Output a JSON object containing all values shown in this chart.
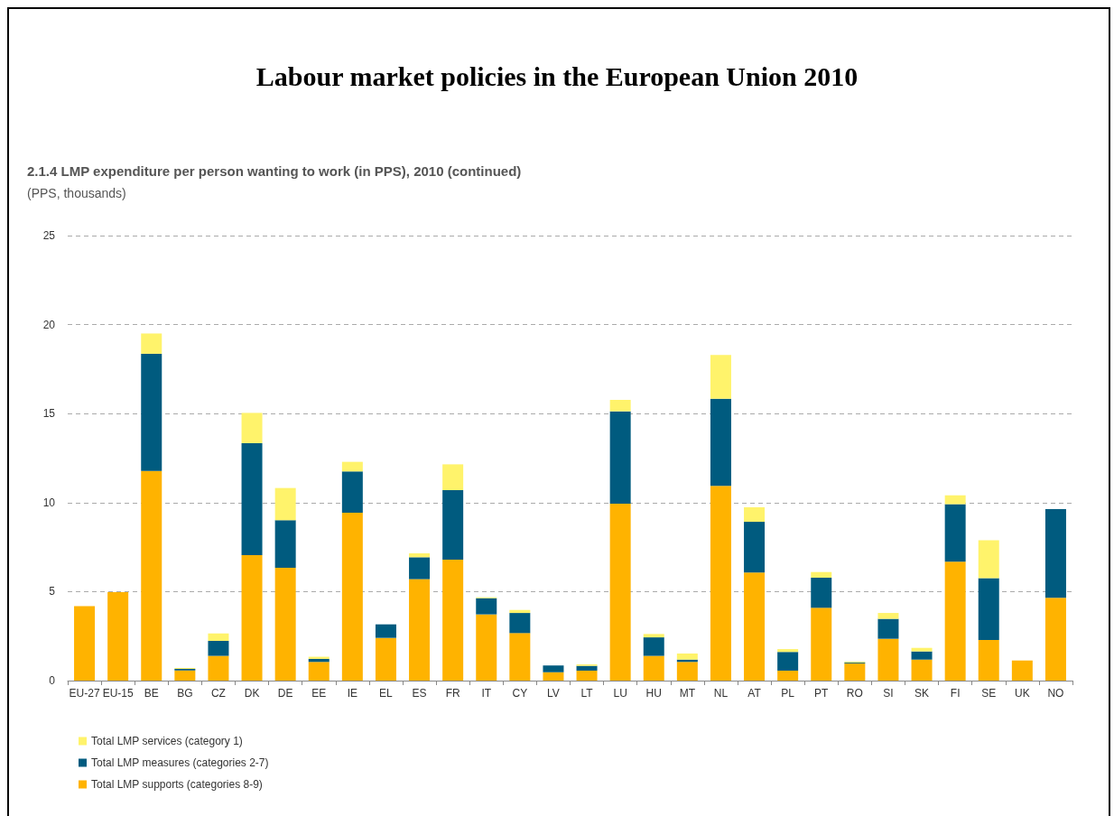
{
  "chart_data": {
    "type": "bar",
    "title": "Labour market policies in the European Union 2010",
    "subtitle": "2.1.4 LMP expenditure per person wanting to work (in PPS), 2010 (continued)",
    "ylabel": "(PPS, thousands)",
    "categories": [
      "EU-27",
      "EU-15",
      "BE",
      "BG",
      "CZ",
      "DK",
      "DE",
      "EE",
      "IE",
      "EL",
      "ES",
      "FR",
      "IT",
      "CY",
      "LV",
      "LT",
      "LU",
      "HU",
      "MT",
      "NL",
      "AT",
      "PL",
      "PT",
      "RO",
      "SI",
      "SK",
      "FI",
      "SE",
      "UK",
      "NO"
    ],
    "stacked": true,
    "series": [
      {
        "name": "Total LMP supports (categories 8-9)",
        "color": "#ffb300",
        "values": [
          4.18,
          4.97,
          11.78,
          0.57,
          1.39,
          7.05,
          6.34,
          1.05,
          9.43,
          2.4,
          5.7,
          6.8,
          3.72,
          2.67,
          0.47,
          0.56,
          9.94,
          1.39,
          1.05,
          10.94,
          6.07,
          0.56,
          4.09,
          0.96,
          2.35,
          1.18,
          6.68,
          2.28,
          1.13,
          4.65
        ]
      },
      {
        "name": "Total LMP measures (categories 2-7)",
        "color": "#005b7f",
        "values": [
          null,
          null,
          6.58,
          0.09,
          0.84,
          6.29,
          2.67,
          0.17,
          2.32,
          0.76,
          1.23,
          3.9,
          0.91,
          1.13,
          0.38,
          0.27,
          5.19,
          1.04,
          0.13,
          4.9,
          2.85,
          1.05,
          1.69,
          0.05,
          1.12,
          0.46,
          3.23,
          3.47,
          null,
          4.98
        ]
      },
      {
        "name": "Total LMP services (category 1)",
        "color": "#fff36b",
        "values": [
          null,
          null,
          1.14,
          0.05,
          0.42,
          1.7,
          1.81,
          0.12,
          0.54,
          null,
          0.22,
          1.45,
          0.05,
          0.17,
          null,
          0.08,
          0.64,
          0.19,
          0.34,
          2.45,
          0.82,
          0.16,
          0.32,
          0.05,
          0.33,
          0.2,
          0.5,
          2.14,
          null,
          null
        ]
      }
    ],
    "ylim": [
      0,
      25
    ],
    "yticks": [
      0,
      5,
      10,
      15,
      20,
      25
    ],
    "grid": "y",
    "legend": "bottom left"
  }
}
